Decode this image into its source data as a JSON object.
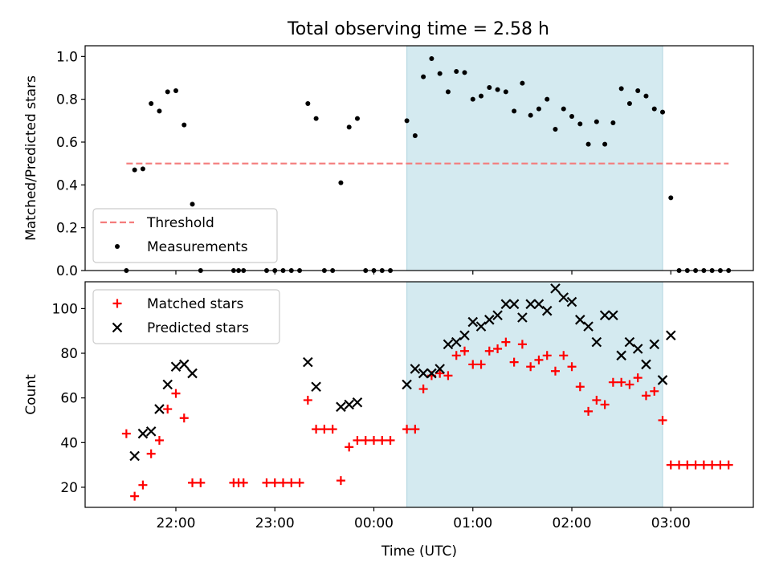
{
  "figure_title": "Total observing time = 2.58 h",
  "chart_data": [
    {
      "type": "scatter",
      "panel": "top",
      "ylabel": "Matched/Predicted stars",
      "xlabel": "",
      "ylim": [
        0,
        1.05
      ],
      "yticks": [
        0.0,
        0.2,
        0.4,
        0.6,
        0.8,
        1.0
      ],
      "ytick_labels": [
        "0.0",
        "0.2",
        "0.4",
        "0.6",
        "0.8",
        "1.0"
      ],
      "grid": false,
      "legend_position": "lower-left",
      "shaded_region": {
        "x": [
          "00:20",
          "02:55"
        ],
        "color": "#d4eaf0"
      },
      "threshold": {
        "name": "Threshold",
        "value": 0.5,
        "x": [
          "21:30",
          "03:35"
        ],
        "color": "#f47c7c",
        "style": "dashed"
      },
      "series": [
        {
          "name": "Measurements",
          "marker": "dot",
          "color": "#000000",
          "points": [
            [
              "21:30",
              0.0
            ],
            [
              "21:35",
              0.47
            ],
            [
              "21:40",
              0.475
            ],
            [
              "21:45",
              0.78
            ],
            [
              "21:50",
              0.745
            ],
            [
              "21:55",
              0.835
            ],
            [
              "22:00",
              0.84
            ],
            [
              "22:05",
              0.68
            ],
            [
              "22:10",
              0.31
            ],
            [
              "22:15",
              0.0
            ],
            [
              "22:35",
              0.0
            ],
            [
              "22:38",
              0.0
            ],
            [
              "22:41",
              0.0
            ],
            [
              "22:55",
              0.0
            ],
            [
              "23:00",
              0.0
            ],
            [
              "23:05",
              0.0
            ],
            [
              "23:10",
              0.0
            ],
            [
              "23:15",
              0.0
            ],
            [
              "23:20",
              0.78
            ],
            [
              "23:25",
              0.71
            ],
            [
              "23:30",
              0.0
            ],
            [
              "23:35",
              0.0
            ],
            [
              "23:40",
              0.41
            ],
            [
              "23:45",
              0.67
            ],
            [
              "23:50",
              0.71
            ],
            [
              "23:55",
              0.0
            ],
            [
              "00:00",
              0.0
            ],
            [
              "00:05",
              0.0
            ],
            [
              "00:10",
              0.0
            ],
            [
              "00:20",
              0.7
            ],
            [
              "00:25",
              0.63
            ],
            [
              "00:30",
              0.905
            ],
            [
              "00:35",
              0.99
            ],
            [
              "00:40",
              0.92
            ],
            [
              "00:45",
              0.835
            ],
            [
              "00:50",
              0.93
            ],
            [
              "00:55",
              0.925
            ],
            [
              "01:00",
              0.8
            ],
            [
              "01:05",
              0.815
            ],
            [
              "01:10",
              0.855
            ],
            [
              "01:15",
              0.845
            ],
            [
              "01:20",
              0.835
            ],
            [
              "01:25",
              0.745
            ],
            [
              "01:30",
              0.875
            ],
            [
              "01:35",
              0.725
            ],
            [
              "01:40",
              0.755
            ],
            [
              "01:45",
              0.8
            ],
            [
              "01:50",
              0.66
            ],
            [
              "01:55",
              0.755
            ],
            [
              "02:00",
              0.72
            ],
            [
              "02:05",
              0.685
            ],
            [
              "02:10",
              0.59
            ],
            [
              "02:15",
              0.695
            ],
            [
              "02:20",
              0.59
            ],
            [
              "02:25",
              0.69
            ],
            [
              "02:30",
              0.85
            ],
            [
              "02:35",
              0.78
            ],
            [
              "02:40",
              0.84
            ],
            [
              "02:45",
              0.815
            ],
            [
              "02:50",
              0.755
            ],
            [
              "02:55",
              0.74
            ],
            [
              "03:00",
              0.34
            ],
            [
              "03:05",
              0.0
            ],
            [
              "03:10",
              0.0
            ],
            [
              "03:15",
              0.0
            ],
            [
              "03:20",
              0.0
            ],
            [
              "03:25",
              0.0
            ],
            [
              "03:30",
              0.0
            ],
            [
              "03:35",
              0.0
            ]
          ]
        }
      ]
    },
    {
      "type": "scatter",
      "panel": "bottom",
      "xlabel": "Time (UTC)",
      "ylabel": "Count",
      "ylim": [
        11,
        112
      ],
      "yticks": [
        20,
        40,
        60,
        80,
        100
      ],
      "ytick_labels": [
        "20",
        "40",
        "60",
        "80",
        "100"
      ],
      "xlim": [
        "21:05",
        "03:50"
      ],
      "xticks": [
        "22:00",
        "23:00",
        "00:00",
        "01:00",
        "02:00",
        "03:00"
      ],
      "grid": false,
      "legend_position": "upper-left",
      "shaded_region": {
        "x": [
          "00:20",
          "02:55"
        ],
        "color": "#d4eaf0"
      },
      "series": [
        {
          "name": "Matched stars",
          "marker": "plus",
          "color": "#ff0000",
          "points": [
            [
              "21:30",
              44
            ],
            [
              "21:35",
              16
            ],
            [
              "21:40",
              21
            ],
            [
              "21:45",
              35
            ],
            [
              "21:50",
              41
            ],
            [
              "21:55",
              55
            ],
            [
              "22:00",
              62
            ],
            [
              "22:05",
              51
            ],
            [
              "22:10",
              22
            ],
            [
              "22:15",
              22
            ],
            [
              "22:35",
              22
            ],
            [
              "22:38",
              22
            ],
            [
              "22:41",
              22
            ],
            [
              "22:55",
              22
            ],
            [
              "23:00",
              22
            ],
            [
              "23:05",
              22
            ],
            [
              "23:10",
              22
            ],
            [
              "23:15",
              22
            ],
            [
              "23:20",
              59
            ],
            [
              "23:25",
              46
            ],
            [
              "23:30",
              46
            ],
            [
              "23:35",
              46
            ],
            [
              "23:40",
              23
            ],
            [
              "23:45",
              38
            ],
            [
              "23:50",
              41
            ],
            [
              "23:55",
              41
            ],
            [
              "00:00",
              41
            ],
            [
              "00:05",
              41
            ],
            [
              "00:10",
              41
            ],
            [
              "00:20",
              46
            ],
            [
              "00:25",
              46
            ],
            [
              "00:30",
              64
            ],
            [
              "00:35",
              70
            ],
            [
              "00:40",
              71
            ],
            [
              "00:45",
              70
            ],
            [
              "00:50",
              79
            ],
            [
              "00:55",
              81
            ],
            [
              "01:00",
              75
            ],
            [
              "01:05",
              75
            ],
            [
              "01:10",
              81
            ],
            [
              "01:15",
              82
            ],
            [
              "01:20",
              85
            ],
            [
              "01:25",
              76
            ],
            [
              "01:30",
              84
            ],
            [
              "01:35",
              74
            ],
            [
              "01:40",
              77
            ],
            [
              "01:45",
              79
            ],
            [
              "01:50",
              72
            ],
            [
              "01:55",
              79
            ],
            [
              "02:00",
              74
            ],
            [
              "02:05",
              65
            ],
            [
              "02:10",
              54
            ],
            [
              "02:15",
              59
            ],
            [
              "02:20",
              57
            ],
            [
              "02:25",
              67
            ],
            [
              "02:30",
              67
            ],
            [
              "02:35",
              66
            ],
            [
              "02:40",
              69
            ],
            [
              "02:45",
              61
            ],
            [
              "02:50",
              63
            ],
            [
              "02:55",
              50
            ],
            [
              "03:00",
              30
            ],
            [
              "03:05",
              30
            ],
            [
              "03:10",
              30
            ],
            [
              "03:15",
              30
            ],
            [
              "03:20",
              30
            ],
            [
              "03:25",
              30
            ],
            [
              "03:30",
              30
            ],
            [
              "03:35",
              30
            ]
          ]
        },
        {
          "name": "Predicted stars",
          "marker": "x",
          "color": "#000000",
          "points": [
            [
              "21:35",
              34
            ],
            [
              "21:40",
              44
            ],
            [
              "21:45",
              45
            ],
            [
              "21:50",
              55
            ],
            [
              "21:55",
              66
            ],
            [
              "22:00",
              74
            ],
            [
              "22:05",
              75
            ],
            [
              "22:10",
              71
            ],
            [
              "23:20",
              76
            ],
            [
              "23:25",
              65
            ],
            [
              "23:40",
              56
            ],
            [
              "23:45",
              57
            ],
            [
              "23:50",
              58
            ],
            [
              "00:20",
              66
            ],
            [
              "00:25",
              73
            ],
            [
              "00:30",
              71
            ],
            [
              "00:35",
              71
            ],
            [
              "00:40",
              73
            ],
            [
              "00:45",
              84
            ],
            [
              "00:50",
              85
            ],
            [
              "00:55",
              88
            ],
            [
              "01:00",
              94
            ],
            [
              "01:05",
              92
            ],
            [
              "01:10",
              95
            ],
            [
              "01:15",
              97
            ],
            [
              "01:20",
              102
            ],
            [
              "01:25",
              102
            ],
            [
              "01:30",
              96
            ],
            [
              "01:35",
              102
            ],
            [
              "01:40",
              102
            ],
            [
              "01:45",
              99
            ],
            [
              "01:50",
              109
            ],
            [
              "01:55",
              105
            ],
            [
              "02:00",
              103
            ],
            [
              "02:05",
              95
            ],
            [
              "02:10",
              92
            ],
            [
              "02:15",
              85
            ],
            [
              "02:20",
              97
            ],
            [
              "02:25",
              97
            ],
            [
              "02:30",
              79
            ],
            [
              "02:35",
              85
            ],
            [
              "02:40",
              82
            ],
            [
              "02:45",
              75
            ],
            [
              "02:50",
              84
            ],
            [
              "02:55",
              68
            ],
            [
              "03:00",
              88
            ]
          ]
        }
      ]
    }
  ]
}
